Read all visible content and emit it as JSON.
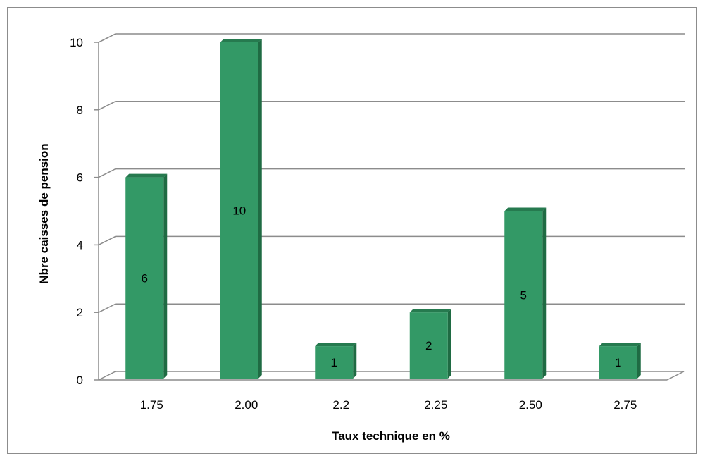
{
  "chart_data": {
    "type": "bar",
    "categories": [
      "1.75",
      "2.00",
      "2.2",
      "2.25",
      "2.50",
      "2.75"
    ],
    "values": [
      6,
      10,
      1,
      2,
      5,
      1
    ],
    "data_labels": [
      "6",
      "10",
      "1",
      "2",
      "5",
      "1"
    ],
    "title": "",
    "xlabel": "Taux technique en %",
    "ylabel": "Nbre caisses de pension",
    "ylim": [
      0,
      10
    ],
    "yticks": [
      "0",
      "2",
      "4",
      "6",
      "8",
      "10"
    ],
    "ytick_values": [
      0,
      2,
      4,
      6,
      8,
      10
    ],
    "grid": true,
    "legend": "none",
    "style": "3d-bar",
    "colors": {
      "bar_front": "#339966",
      "bar_side": "#1f6b43",
      "bar_top": "#267a4f",
      "gridline": "#8c8c8c",
      "frame": "#8c8c8c"
    }
  }
}
